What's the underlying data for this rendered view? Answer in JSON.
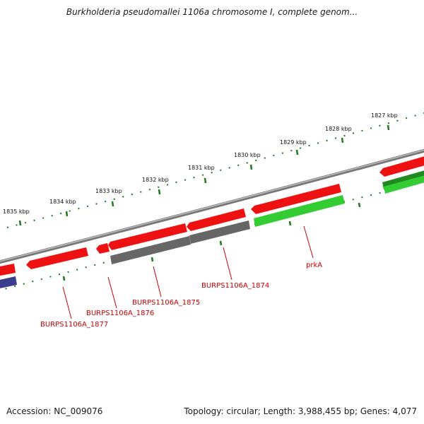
{
  "title": "Burkholderia pseudomallei 1106a chromosome I, complete genom...",
  "footer": {
    "accession": "Accession: NC_009076",
    "summary": "Topology: circular; Length: 3,988,455 bp; Genes: 4,077"
  },
  "colors": {
    "backbone": "#8a8a8a",
    "tick": "#1f7a1f",
    "gene_red": "#ee1111",
    "gene_grey": "#666666",
    "gene_green": "#33cc33",
    "gene_darkgreen": "#1f8a1f",
    "gene_blue": "#3d3d8f",
    "label": "#cc0000"
  },
  "tick_labels": [
    "1827 kbp",
    "1828 kbp",
    "1829 kbp",
    "1830 kbp",
    "1831 kbp",
    "1832 kbp",
    "1833 kbp",
    "1834 kbp",
    "1835 kbp"
  ],
  "gene_labels": [
    "prkA",
    "BURPS1106A_1874",
    "BURPS1106A_1875",
    "BURPS1106A_1876",
    "BURPS1106A_1877"
  ]
}
